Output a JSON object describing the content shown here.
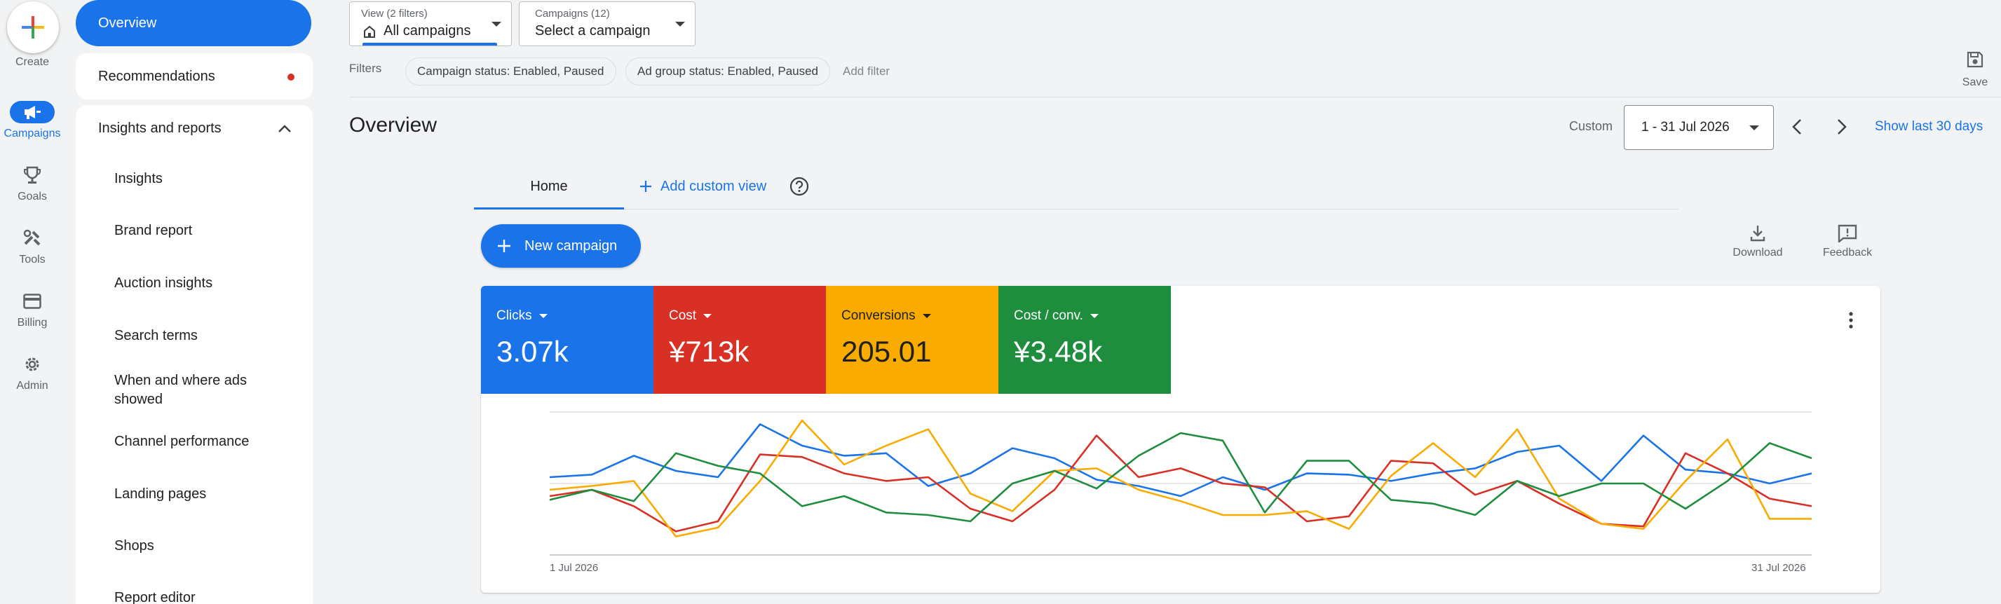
{
  "rail": {
    "create": "Create",
    "items": [
      {
        "label": "Campaigns",
        "icon": "megaphone-icon",
        "active": true
      },
      {
        "label": "Goals",
        "icon": "trophy-icon"
      },
      {
        "label": "Tools",
        "icon": "tools-icon"
      },
      {
        "label": "Billing",
        "icon": "credit-card-icon"
      },
      {
        "label": "Admin",
        "icon": "gear-icon"
      }
    ]
  },
  "nav": {
    "overview": "Overview",
    "recommendations": "Recommendations",
    "group_title": "Insights and reports",
    "sub_items": [
      "Insights",
      "Brand report",
      "Auction insights",
      "Search terms",
      "When and where ads showed",
      "Channel performance",
      "Landing pages",
      "Shops",
      "Report editor"
    ]
  },
  "toolbar": {
    "view_small": "View (2 filters)",
    "view_value": "All campaigns",
    "campaigns_small": "Campaigns (12)",
    "campaigns_value": "Select a campaign",
    "filters_label": "Filters",
    "chips": [
      "Campaign status: Enabled, Paused",
      "Ad group status: Enabled, Paused"
    ],
    "add_filter": "Add filter",
    "save": "Save"
  },
  "header": {
    "title": "Overview",
    "custom_label": "Custom",
    "date_range": "1 - 31 Jul 2026",
    "show_last": "Show last 30 days"
  },
  "tabs": {
    "home": "Home",
    "add_custom_view": "Add custom view"
  },
  "actions": {
    "new_campaign": "New campaign",
    "download": "Download",
    "feedback": "Feedback"
  },
  "colors": {
    "blue": "#1a73e8",
    "red": "#d93025",
    "yellow": "#f9ab00",
    "green": "#1e8e3e"
  },
  "metrics": [
    {
      "label": "Clicks",
      "value": "3.07k",
      "color": "#1a73e8"
    },
    {
      "label": "Cost",
      "value": "¥713k",
      "color": "#d93025"
    },
    {
      "label": "Conversions",
      "value": "205.01",
      "color": "#f9ab00"
    },
    {
      "label": "Cost / conv.",
      "value": "¥3.48k",
      "color": "#1e8e3e"
    }
  ],
  "chart_data": {
    "type": "line",
    "x_start_label": "1 Jul 2026",
    "x_end_label": "31 Jul 2026",
    "ylim": [
      0,
      100
    ],
    "grid": true,
    "series": [
      {
        "color": "#1a73e8",
        "values": [
          55,
          57,
          72,
          60,
          55,
          97,
          80,
          72,
          74,
          48,
          58,
          78,
          70,
          53,
          48,
          40,
          55,
          45,
          58,
          57,
          52,
          58,
          62,
          75,
          80,
          52,
          88,
          61,
          58,
          50,
          58
        ]
      },
      {
        "color": "#d93025",
        "values": [
          40,
          45,
          32,
          12,
          20,
          73,
          71,
          58,
          52,
          55,
          30,
          20,
          45,
          88,
          55,
          62,
          50,
          47,
          20,
          24,
          68,
          66,
          41,
          52,
          34,
          18,
          16,
          74,
          58,
          38,
          32
        ]
      },
      {
        "color": "#f9ab00",
        "values": [
          45,
          48,
          52,
          8,
          15,
          52,
          100,
          65,
          80,
          93,
          42,
          28,
          60,
          62,
          45,
          36,
          25,
          25,
          28,
          14,
          56,
          82,
          55,
          93,
          38,
          18,
          14,
          52,
          85,
          22,
          22
        ]
      },
      {
        "color": "#1e8e3e",
        "values": [
          37,
          45,
          36,
          74,
          64,
          58,
          32,
          40,
          27,
          25,
          20,
          50,
          60,
          46,
          72,
          90,
          84,
          27,
          68,
          68,
          37,
          34,
          25,
          52,
          40,
          50,
          50,
          30,
          52,
          82,
          70
        ]
      }
    ]
  }
}
